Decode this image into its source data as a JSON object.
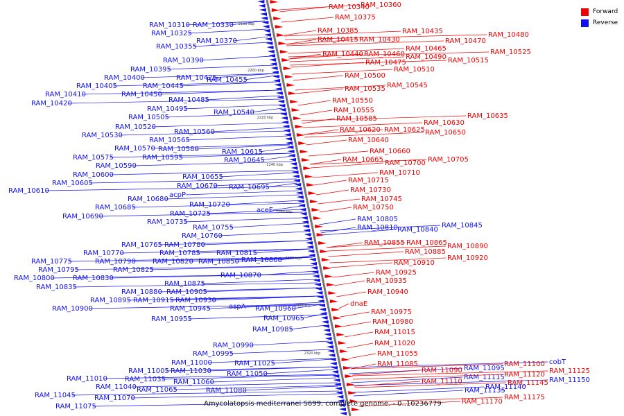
{
  "legend": {
    "forward_label": "Forward",
    "reverse_label": "Reverse",
    "forward_color": "#ee0000",
    "reverse_color": "#1010ee"
  },
  "caption": "Amycolatopsis mediterranei S699, complete genome. - 0..10236779",
  "ticks": [
    "2180 kbp",
    "2200 kbp",
    "2220 kbp",
    "2240 kbp",
    "2260 kbp",
    "2280 kbp",
    "2300 kbp",
    "2320 kbp"
  ],
  "reverse_labels": [
    "RAM_10310",
    "RAM_10330",
    "RAM_10325",
    "RAM_10370",
    "RAM_10355",
    "RAM_10390",
    "RAM_10395",
    "RAM_10400",
    "RAM_10425",
    "RAM_10405",
    "RAM_10445",
    "RAM_10455",
    "RAM_10410",
    "RAM_10450",
    "RAM_10420",
    "RAM_10485",
    "RAM_10495",
    "RAM_10540",
    "RAM_10505",
    "RAM_10520",
    "RAM_10560",
    "RAM_10530",
    "RAM_10565",
    "RAM_10570",
    "RAM_10580",
    "RAM_10615",
    "RAM_10575",
    "RAM_10595",
    "RAM_10645",
    "RAM_10590",
    "RAM_10600",
    "RAM_10655",
    "RAM_10605",
    "RAM_10670",
    "RAM_10695",
    "RAM_10610",
    "acpP",
    "RAM_10680",
    "RAM_10720",
    "RAM_10685",
    "aceE",
    "RAM_10725",
    "RAM_10690",
    "RAM_10735",
    "RAM_10755",
    "RAM_10805",
    "RAM_10760",
    "RAM_10810",
    "RAM_10840",
    "RAM_10845",
    "RAM_10765",
    "RAM_10780",
    "RAM_10815",
    "RAM_10770",
    "RAM_10785",
    "RAM_10775",
    "RAM_10790",
    "RAM_10820",
    "RAM_10850",
    "RAM_10860",
    "RAM_10795",
    "RAM_10825",
    "RAM_10870",
    "RAM_10800",
    "RAM_10830",
    "RAM_10875",
    "RAM_10835",
    "RAM_10880",
    "RAM_10905",
    "RAM_10895",
    "RAM_10915",
    "RAM_10930",
    "RAM_10900",
    "RAM_10945",
    "aspA",
    "RAM_10960",
    "RAM_10955",
    "RAM_10965",
    "RAM_10985",
    "RAM_10990",
    "RAM_10995",
    "RAM_11000",
    "RAM_11025",
    "RAM_11005",
    "RAM_11030",
    "RAM_11050",
    "RAM_11010",
    "RAM_11035",
    "RAM_11060",
    "RAM_11040",
    "RAM_11065",
    "RAM_11080",
    "RAM_11045",
    "RAM_11070",
    "RAM_11075",
    "RAM_11095",
    "RAM_11115",
    "RAM_11150",
    "RAM_11135",
    "RAM_11140",
    "cobT"
  ],
  "forward_labels": [
    "RAM_10340",
    "RAM_10360",
    "RAM_10375",
    "RAM_10385",
    "RAM_10435",
    "RAM_10415",
    "RAM_10430",
    "RAM_10480",
    "RAM_10470",
    "RAM_10465",
    "RAM_10525",
    "RAM_10440",
    "RAM_10460",
    "RAM_10490",
    "RAM_10475",
    "RAM_10515",
    "RAM_10510",
    "RAM_10500",
    "RAM_10545",
    "RAM_10535",
    "RAM_10550",
    "RAM_10555",
    "RAM_10635",
    "RAM_10585",
    "RAM_10630",
    "RAM_10620",
    "RAM_10625",
    "RAM_10650",
    "RAM_10640",
    "RAM_10660",
    "RAM_10665",
    "RAM_10705",
    "RAM_10700",
    "RAM_10710",
    "RAM_10715",
    "RAM_10730",
    "RAM_10745",
    "RAM_10750",
    "RAM_10855",
    "RAM_10865",
    "RAM_10890",
    "RAM_10885",
    "RAM_10920",
    "RAM_10910",
    "RAM_10925",
    "RAM_10935",
    "RAM_10940",
    "dnaE",
    "RAM_10975",
    "RAM_10980",
    "RAM_11015",
    "RAM_11020",
    "RAM_11055",
    "RAM_11085",
    "RAM_11090",
    "RAM_11100",
    "RAM_11125",
    "RAM_11120",
    "RAM_11110",
    "RAM_11145",
    "RAM_11175",
    "RAM_11170"
  ]
}
